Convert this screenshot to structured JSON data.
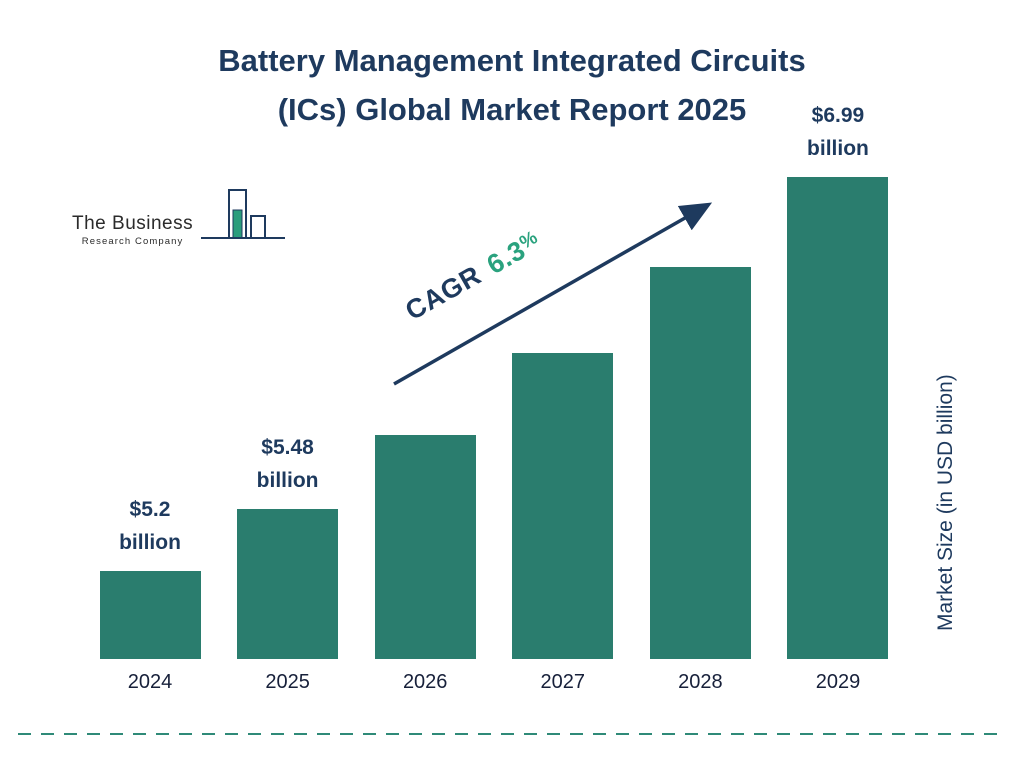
{
  "title": {
    "line1": "Battery Management Integrated Circuits",
    "line2": "(ICs) Global Market Report 2025"
  },
  "logo": {
    "name": "The Business",
    "subtitle": "Research Company"
  },
  "cagr": {
    "prefix": "CAGR",
    "value": "6.3",
    "percent": "%"
  },
  "y_axis_label": "Market Size (in USD billion)",
  "colors": {
    "bar_teal": "#2a7d6e",
    "title_navy": "#1e3a5e",
    "cagr_green": "#2aa27e",
    "divider_teal": "#2f8a78"
  },
  "chart_data": {
    "type": "bar",
    "title": "Battery Management Integrated Circuits (ICs) Global Market Report 2025",
    "categories": [
      "2024",
      "2025",
      "2026",
      "2027",
      "2028",
      "2029"
    ],
    "values": [
      5.2,
      5.48,
      5.82,
      6.19,
      6.58,
      6.99
    ],
    "ylabel": "Market Size (in USD billion)",
    "xlabel": "",
    "legend": "none",
    "grid": "off",
    "cagr": "6.3%",
    "bars": [
      {
        "year": "2024",
        "value": 5.2,
        "label_amount": "$5.2",
        "label_unit": "billion"
      },
      {
        "year": "2025",
        "value": 5.48,
        "label_amount": "$5.48",
        "label_unit": "billion"
      },
      {
        "year": "2026",
        "value": 5.82
      },
      {
        "year": "2027",
        "value": 6.19
      },
      {
        "year": "2028",
        "value": 6.58
      },
      {
        "year": "2029",
        "value": 6.99,
        "label_amount": "$6.99",
        "label_unit": "billion"
      }
    ]
  }
}
